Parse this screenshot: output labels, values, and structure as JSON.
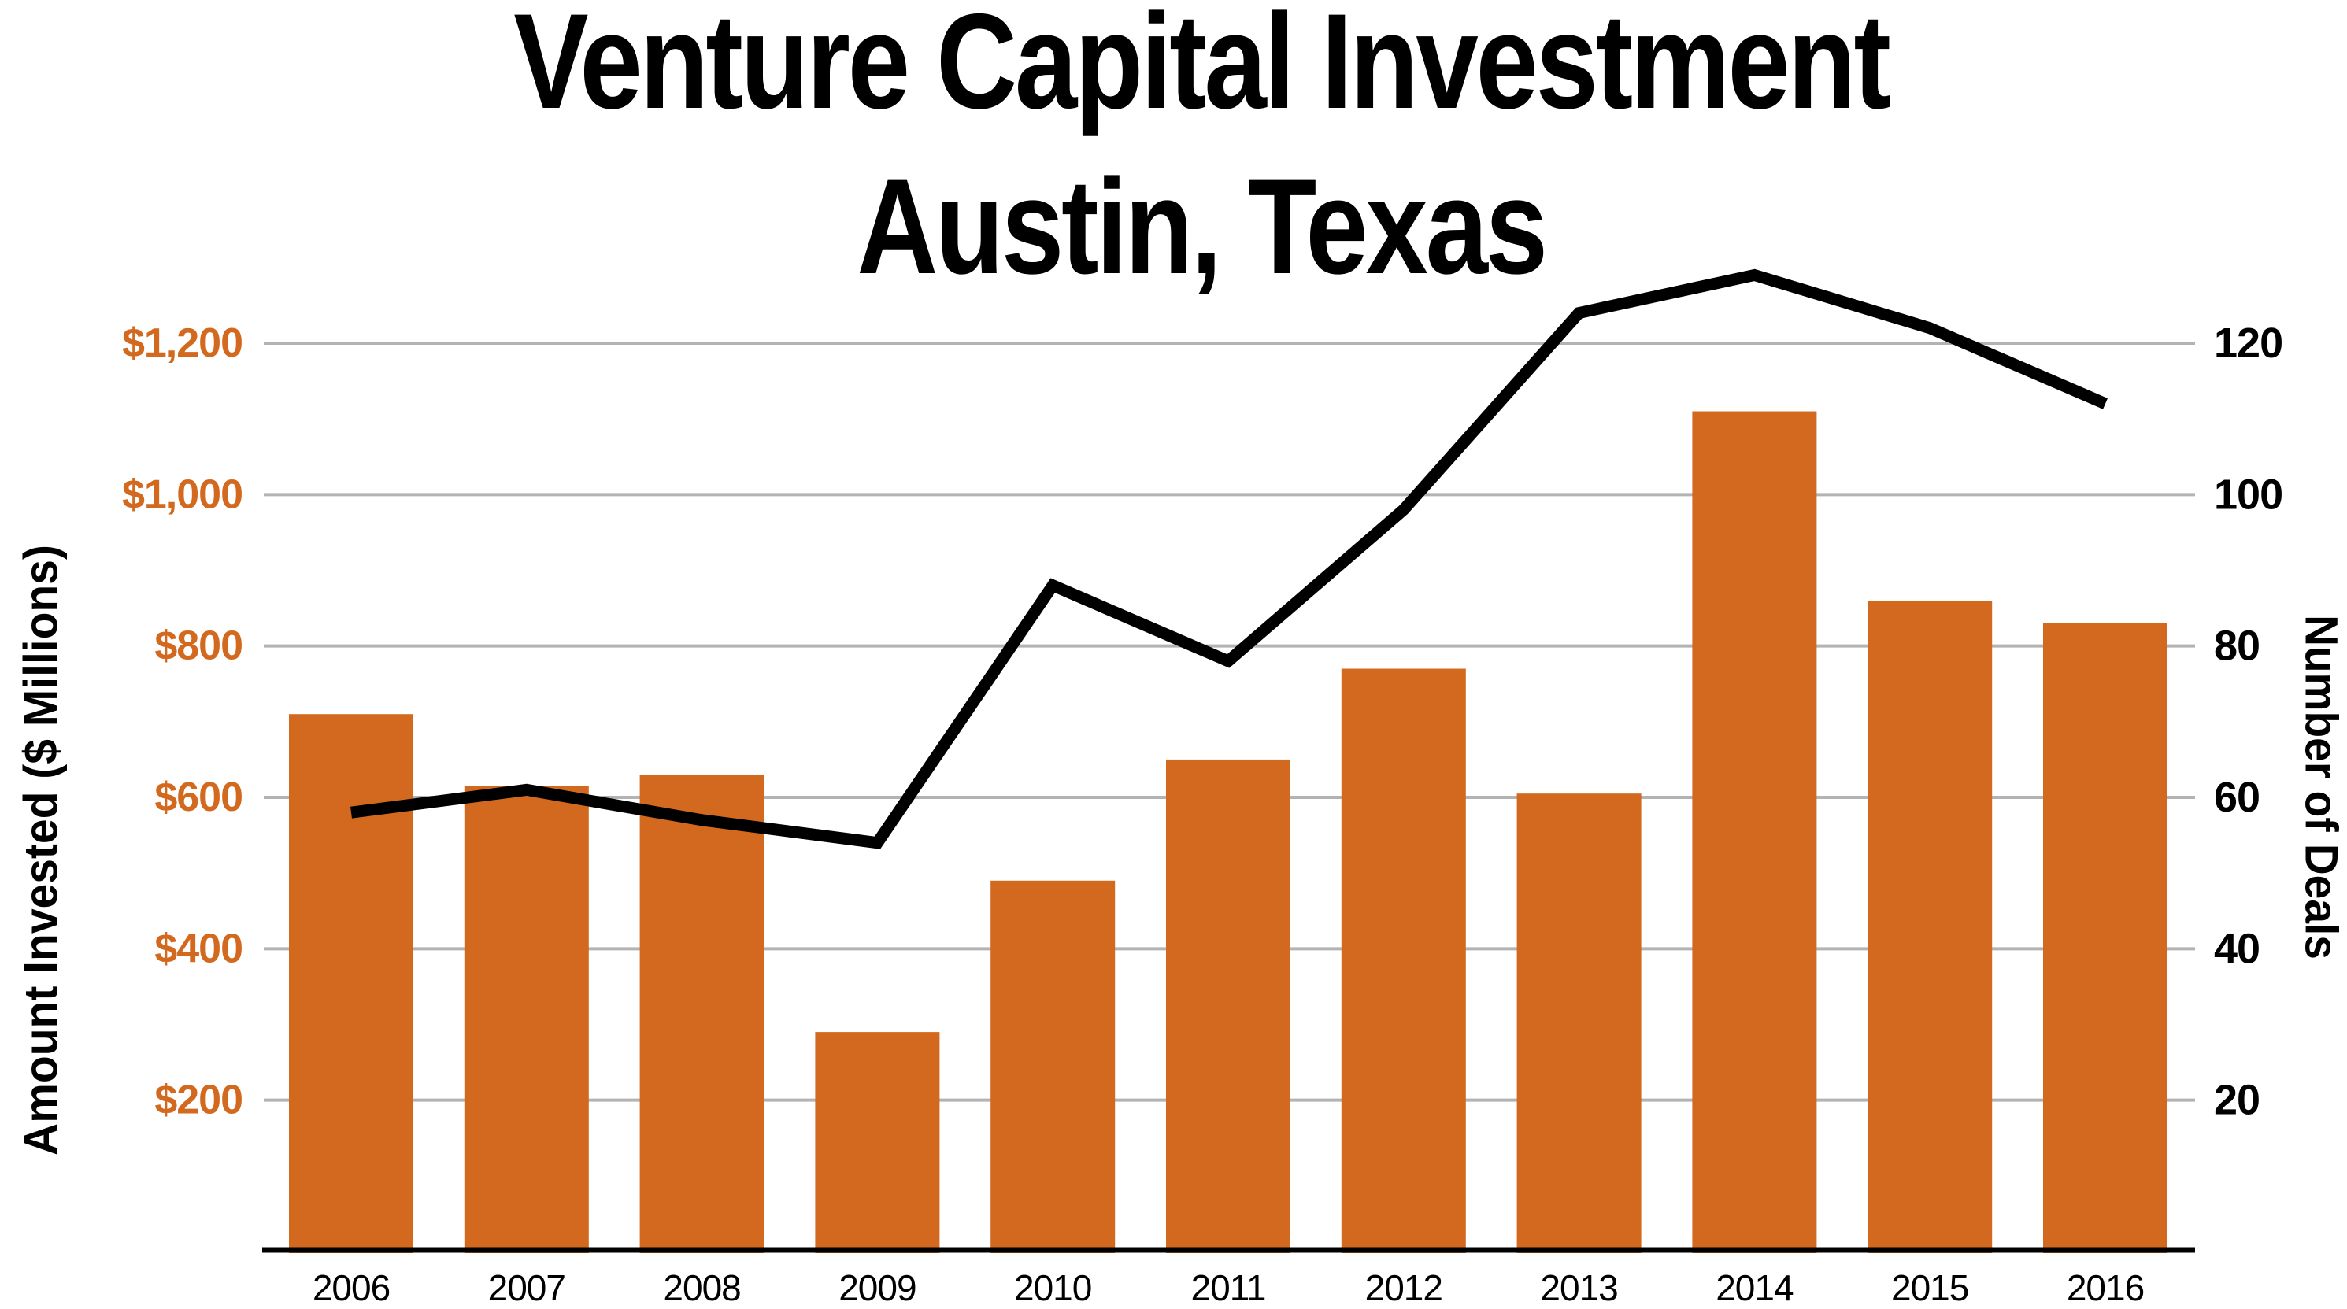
{
  "title": {
    "line1": "Venture Capital Investment",
    "line2": "Austin, Texas"
  },
  "left_axis": {
    "title": "Amount Invested ($ Millions)",
    "tick_labels": [
      "$200",
      "$400",
      "$600",
      "$800",
      "$1,000",
      "$1,200"
    ],
    "tick_values": [
      200,
      400,
      600,
      800,
      1000,
      1200
    ],
    "color": "#D2691E"
  },
  "right_axis": {
    "title": "Number of Deals",
    "tick_labels": [
      "20",
      "40",
      "60",
      "80",
      "100",
      "120"
    ],
    "tick_values": [
      20,
      40,
      60,
      80,
      100,
      120
    ],
    "color": "#000000"
  },
  "x_axis": {
    "categories": [
      "2006",
      "2007",
      "2008",
      "2009",
      "2010",
      "2011",
      "2012",
      "2013",
      "2014",
      "2015",
      "2016"
    ]
  },
  "chart_data": {
    "type": "bar",
    "title": "Venture Capital Investment Austin, Texas",
    "categories": [
      "2006",
      "2007",
      "2008",
      "2009",
      "2010",
      "2011",
      "2012",
      "2013",
      "2014",
      "2015",
      "2016"
    ],
    "series": [
      {
        "name": "Amount Invested ($ Millions)",
        "type": "bar",
        "yaxis": "left",
        "color": "#D2691E",
        "values": [
          710,
          615,
          630,
          290,
          490,
          650,
          770,
          605,
          1110,
          860,
          830
        ]
      },
      {
        "name": "Number of Deals",
        "type": "line",
        "yaxis": "right",
        "color": "#000000",
        "values": [
          58,
          61,
          57,
          54,
          88,
          78,
          98,
          124,
          129,
          122,
          112
        ]
      }
    ],
    "left_ylabel": "Amount Invested ($ Millions)",
    "right_ylabel": "Number of Deals",
    "left_ylim": [
      0,
      1250
    ],
    "right_ylim": [
      0,
      125
    ],
    "grid": true,
    "legend": false
  },
  "colors": {
    "bar": "#D2691E",
    "line": "#000000",
    "grid": "#B3B3B3",
    "axis_line": "#000000",
    "background": "#FFFFFF"
  }
}
